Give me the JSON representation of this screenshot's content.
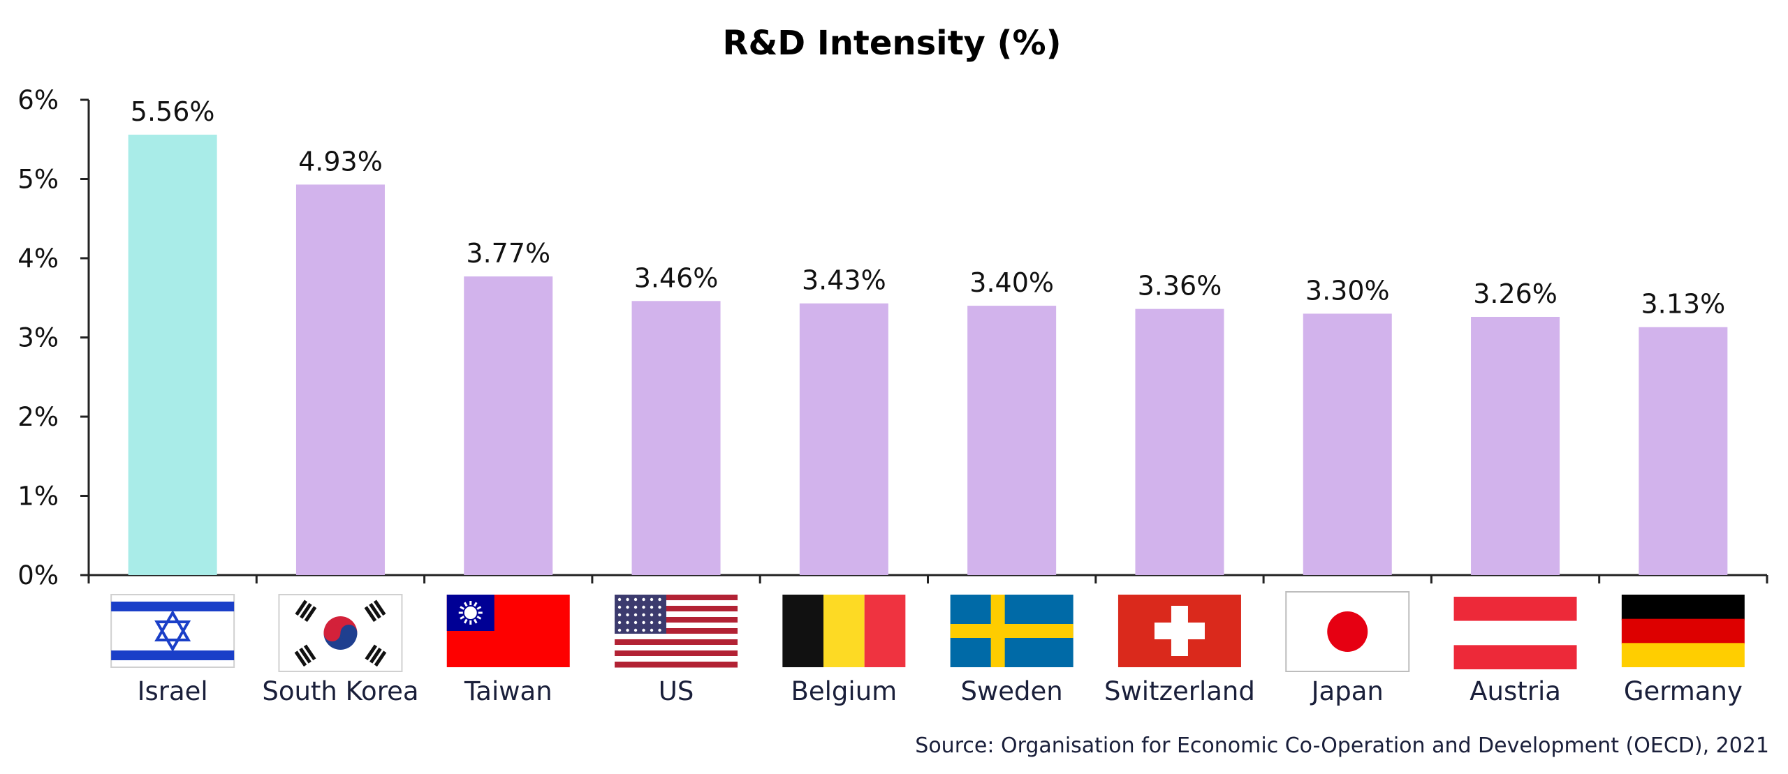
{
  "chart_data": {
    "type": "bar",
    "title": "R&D Intensity (%)",
    "categories": [
      "Israel",
      "South Korea",
      "Taiwan",
      "US",
      "Belgium",
      "Sweden",
      "Switzerland",
      "Japan",
      "Austria",
      "Germany"
    ],
    "values": [
      5.56,
      4.93,
      3.77,
      3.46,
      3.43,
      3.4,
      3.36,
      3.3,
      3.26,
      3.13
    ],
    "data_labels": [
      "5.56%",
      "4.93%",
      "3.77%",
      "3.46%",
      "3.43%",
      "3.40%",
      "3.36%",
      "3.30%",
      "3.26%",
      "3.13%"
    ],
    "flags": [
      "israel-flag",
      "south-korea-flag",
      "taiwan-flag",
      "us-flag",
      "belgium-flag",
      "sweden-flag",
      "switzerland-flag",
      "japan-flag",
      "austria-flag",
      "germany-flag"
    ],
    "y_ticks": [
      "0%",
      "1%",
      "2%",
      "3%",
      "4%",
      "5%",
      "6%"
    ],
    "ylim": [
      0,
      6
    ],
    "xlabel": "",
    "ylabel": "",
    "grid": false,
    "highlight_color": "#a9ece8",
    "bar_color": "#d2b3ec",
    "source": "Source: Organisation for Economic Co-Operation and Development (OECD), 2021"
  }
}
